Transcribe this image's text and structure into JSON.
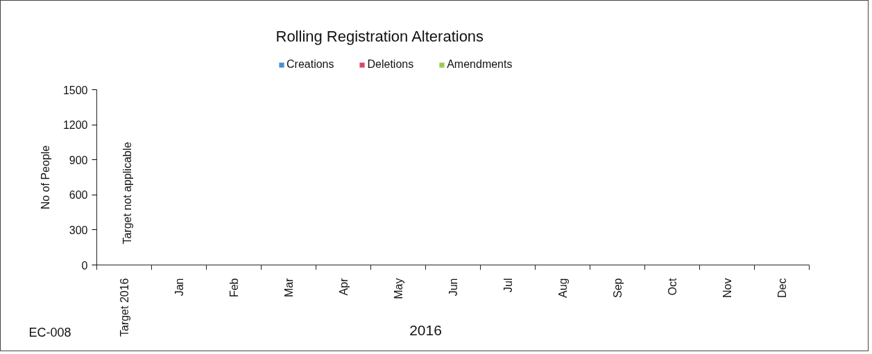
{
  "chart_data": {
    "type": "bar",
    "title": "Rolling Registration Alterations",
    "xlabel": "2016",
    "ylabel": "No of People",
    "categories": [
      "Target 2016",
      "Jan",
      "Feb",
      "Mar",
      "Apr",
      "May",
      "Jun",
      "Jul",
      "Aug",
      "Sep",
      "Oct",
      "Nov",
      "Dec"
    ],
    "series": [
      {
        "name": "Creations",
        "color": "#4a8fd0",
        "values": [
          null,
          null,
          null,
          null,
          null,
          null,
          null,
          null,
          null,
          null,
          null,
          null,
          null
        ]
      },
      {
        "name": "Deletions",
        "color": "#d24b65",
        "values": [
          null,
          null,
          null,
          null,
          null,
          null,
          null,
          null,
          null,
          null,
          null,
          null,
          null
        ]
      },
      {
        "name": "Amendments",
        "color": "#9bcb4f",
        "values": [
          null,
          null,
          null,
          null,
          null,
          null,
          null,
          null,
          null,
          null,
          null,
          null,
          null
        ]
      }
    ],
    "ylim": [
      0,
      1500
    ],
    "yticks": [
      0,
      300,
      600,
      900,
      1200,
      1500
    ],
    "grid": false,
    "legend": "top",
    "annotations": [
      "Target not applicable",
      "EC-008"
    ]
  }
}
